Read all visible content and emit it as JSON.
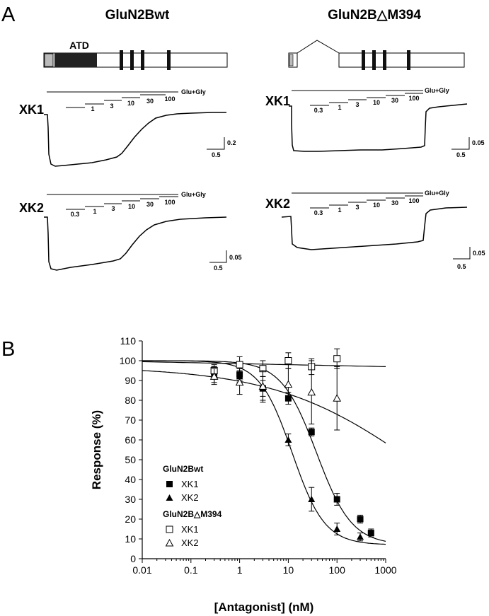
{
  "panel_a": {
    "letter": "A",
    "constructs": [
      {
        "name": "GluN2Bwt",
        "domain_label": "ATD"
      },
      {
        "name": "GluN2B△M394"
      }
    ],
    "trace_rows": [
      {
        "label": "XK1"
      },
      {
        "label": "XK2"
      }
    ],
    "agonist_label": "Glu+Gly",
    "concentration_steps": {
      "wt_xk1": [
        "1",
        "3",
        "10",
        "30",
        "100"
      ],
      "wt_xk2": [
        "0.3",
        "1",
        "3",
        "10",
        "30",
        "100"
      ],
      "del_xk1": [
        "0.3",
        "1",
        "3",
        "10",
        "30",
        "100"
      ],
      "del_xk2": [
        "0.3",
        "1",
        "3",
        "10",
        "30",
        "100"
      ]
    },
    "scale_bars": {
      "wt_xk1": {
        "x": "0.5",
        "y": "0.2"
      },
      "wt_xk2": {
        "x": "0.5",
        "y": "0.05"
      },
      "del_xk1": {
        "x": "0.5",
        "y": "0.05"
      },
      "del_xk2": {
        "x": "0.5",
        "y": "0.05"
      }
    }
  },
  "panel_b": {
    "letter": "B",
    "legend": {
      "group1": "GluN2Bwt",
      "group2": "GluN2B△M394",
      "items": [
        "XK1",
        "XK2",
        "XK1",
        "XK2"
      ]
    }
  },
  "chart_data": {
    "type": "scatter",
    "title": "",
    "xlabel": "[Antagonist] (nM)",
    "ylabel": "Response (%)",
    "xscale": "log",
    "xlim": [
      0.01,
      1000
    ],
    "ylim": [
      0,
      110
    ],
    "x_ticks": [
      "0.01",
      "0.1",
      "1",
      "10",
      "100",
      "1000"
    ],
    "y_ticks": [
      "0",
      "10",
      "20",
      "30",
      "40",
      "50",
      "60",
      "70",
      "80",
      "90",
      "100",
      "110"
    ],
    "grid": false,
    "legend_position": "lower-left",
    "series": [
      {
        "name": "XK1",
        "group": "GluN2Bwt",
        "marker": "filled-square",
        "x": [
          0.3,
          1,
          3,
          10,
          30,
          100,
          300,
          500
        ],
        "y": [
          94,
          93,
          86,
          81,
          64,
          30,
          20,
          13
        ],
        "err": [
          3,
          3,
          4,
          3,
          2,
          3,
          2,
          2
        ],
        "fit": {
          "top": 100,
          "bottom": 7,
          "ic50": 38,
          "hill": 1.2
        }
      },
      {
        "name": "XK2",
        "group": "GluN2Bwt",
        "marker": "filled-triangle",
        "x": [
          0.3,
          1,
          3,
          10,
          30,
          100,
          300
        ],
        "y": [
          93,
          92,
          86,
          60,
          30,
          15,
          11
        ],
        "err": [
          4,
          3,
          6,
          3,
          6,
          3,
          2
        ],
        "fit": {
          "top": 100,
          "bottom": 7,
          "ic50": 12,
          "hill": 1.3
        }
      },
      {
        "name": "XK1",
        "group": "GluN2B△M394",
        "marker": "open-square",
        "x": [
          0.3,
          1,
          3,
          10,
          30,
          100
        ],
        "y": [
          95,
          98,
          96,
          100,
          97,
          101
        ],
        "err": [
          3,
          4,
          4,
          4,
          4,
          5
        ],
        "fit": {
          "type": "line",
          "y_at_xmin": 99.5,
          "y_at_xmax": 97
        }
      },
      {
        "name": "XK2",
        "group": "GluN2B△M394",
        "marker": "open-triangle",
        "x": [
          0.3,
          1,
          3,
          10,
          30,
          100
        ],
        "y": [
          92,
          89,
          87,
          88,
          84,
          81
        ],
        "err": [
          4,
          6,
          8,
          8,
          16,
          16
        ],
        "fit": {
          "top": 97,
          "bottom": 0,
          "ic50": 4000,
          "hill": 0.3
        }
      }
    ]
  }
}
